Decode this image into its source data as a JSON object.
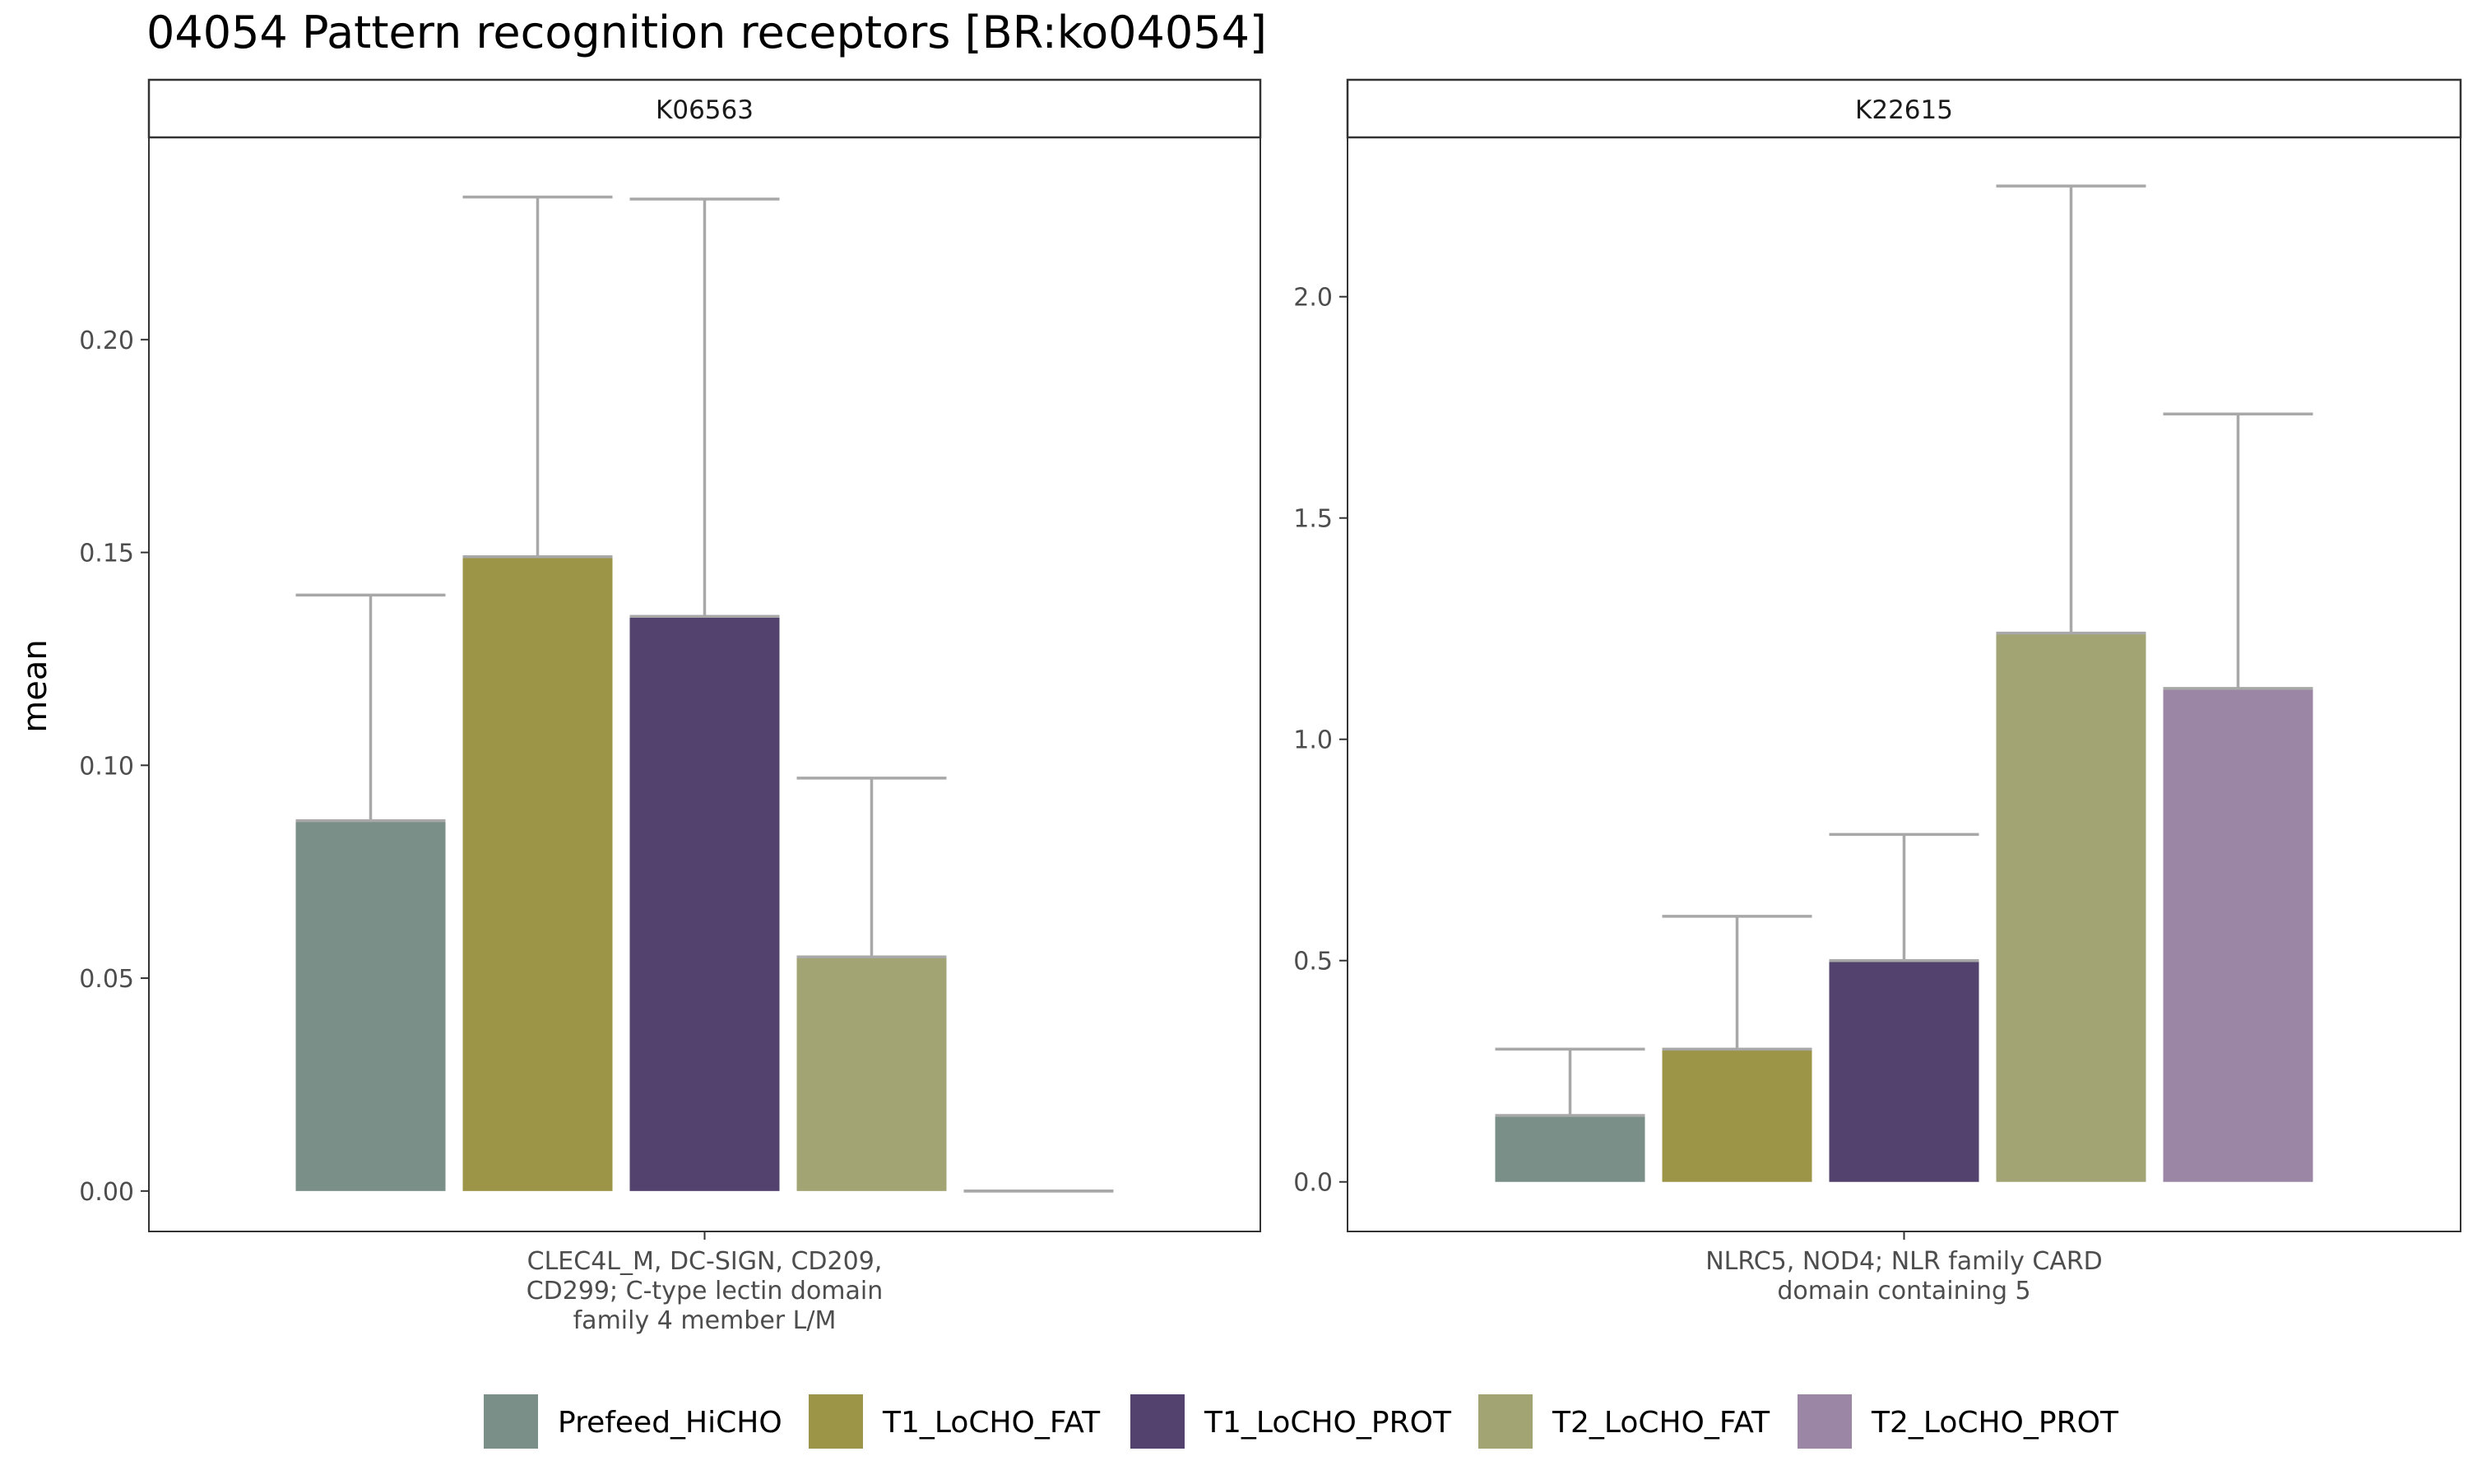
{
  "title": "04054 Pattern recognition receptors [BR:ko04054]",
  "ylabel": "mean",
  "colors": {
    "Prefeed_HiCHO": "#7a8f87",
    "T1_LoCHO_FAT": "#9c9446",
    "T1_LoCHO_PROT": "#52426d",
    "T2_LoCHO_FAT": "#a2a474",
    "T2_LoCHO_PROT": "#9b87a5",
    "errorbar": "#a8a8a8",
    "panel_border": "#333333",
    "strip_fill": "#ffffff"
  },
  "legend": {
    "position": "bottom",
    "items": [
      {
        "label": "Prefeed_HiCHO",
        "color": "#7a8f87"
      },
      {
        "label": "T1_LoCHO_FAT",
        "color": "#9c9446"
      },
      {
        "label": "T1_LoCHO_PROT",
        "color": "#52426d"
      },
      {
        "label": "T2_LoCHO_FAT",
        "color": "#a2a474"
      },
      {
        "label": "T2_LoCHO_PROT",
        "color": "#9b87a5"
      }
    ]
  },
  "chart_data": [
    {
      "type": "bar",
      "facet": "K06563",
      "category_label": [
        "CLEC4L_M, DC-SIGN, CD209,",
        "CD299; C-type lectin domain",
        "family 4 member L/M"
      ],
      "ylim": [
        -0.0095,
        0.2475
      ],
      "yticks": [
        0.0,
        0.05,
        0.1,
        0.15,
        0.2
      ],
      "ytick_labels": [
        "0.00",
        "0.05",
        "0.10",
        "0.15",
        "0.20"
      ],
      "grid": false,
      "series": [
        {
          "name": "Prefeed_HiCHO",
          "value": 0.087,
          "error_upper": 0.14
        },
        {
          "name": "T1_LoCHO_FAT",
          "value": 0.149,
          "error_upper": 0.2335
        },
        {
          "name": "T1_LoCHO_PROT",
          "value": 0.135,
          "error_upper": 0.233
        },
        {
          "name": "T2_LoCHO_FAT",
          "value": 0.055,
          "error_upper": 0.097
        },
        {
          "name": "T2_LoCHO_PROT",
          "value": 0.0,
          "error_upper": 0.0
        }
      ]
    },
    {
      "type": "bar",
      "facet": "K22615",
      "category_label": [
        "NLRC5, NOD4; NLR family CARD",
        "domain containing 5"
      ],
      "ylim": [
        -0.112,
        2.36
      ],
      "yticks": [
        0.0,
        0.5,
        1.0,
        1.5,
        2.0
      ],
      "ytick_labels": [
        "0.0",
        "0.5",
        "1.0",
        "1.5",
        "2.0"
      ],
      "grid": false,
      "series": [
        {
          "name": "Prefeed_HiCHO",
          "value": 0.15,
          "error_upper": 0.3
        },
        {
          "name": "T1_LoCHO_FAT",
          "value": 0.3,
          "error_upper": 0.6
        },
        {
          "name": "T1_LoCHO_PROT",
          "value": 0.5,
          "error_upper": 0.785
        },
        {
          "name": "T2_LoCHO_FAT",
          "value": 1.24,
          "error_upper": 2.25
        },
        {
          "name": "T2_LoCHO_PROT",
          "value": 1.115,
          "error_upper": 1.735
        }
      ]
    }
  ]
}
